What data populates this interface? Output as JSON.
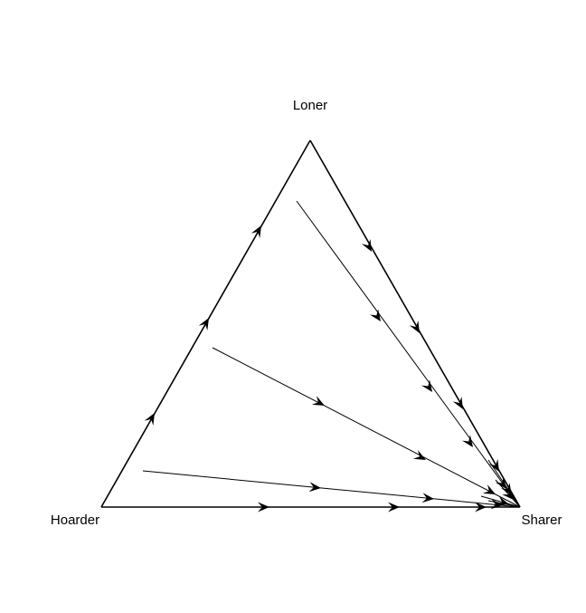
{
  "vertices": {
    "top": "Loner",
    "left": "Hoarder",
    "right": "Sharer"
  },
  "colors": {
    "lines": "#000000",
    "background": "#ffffff"
  }
}
